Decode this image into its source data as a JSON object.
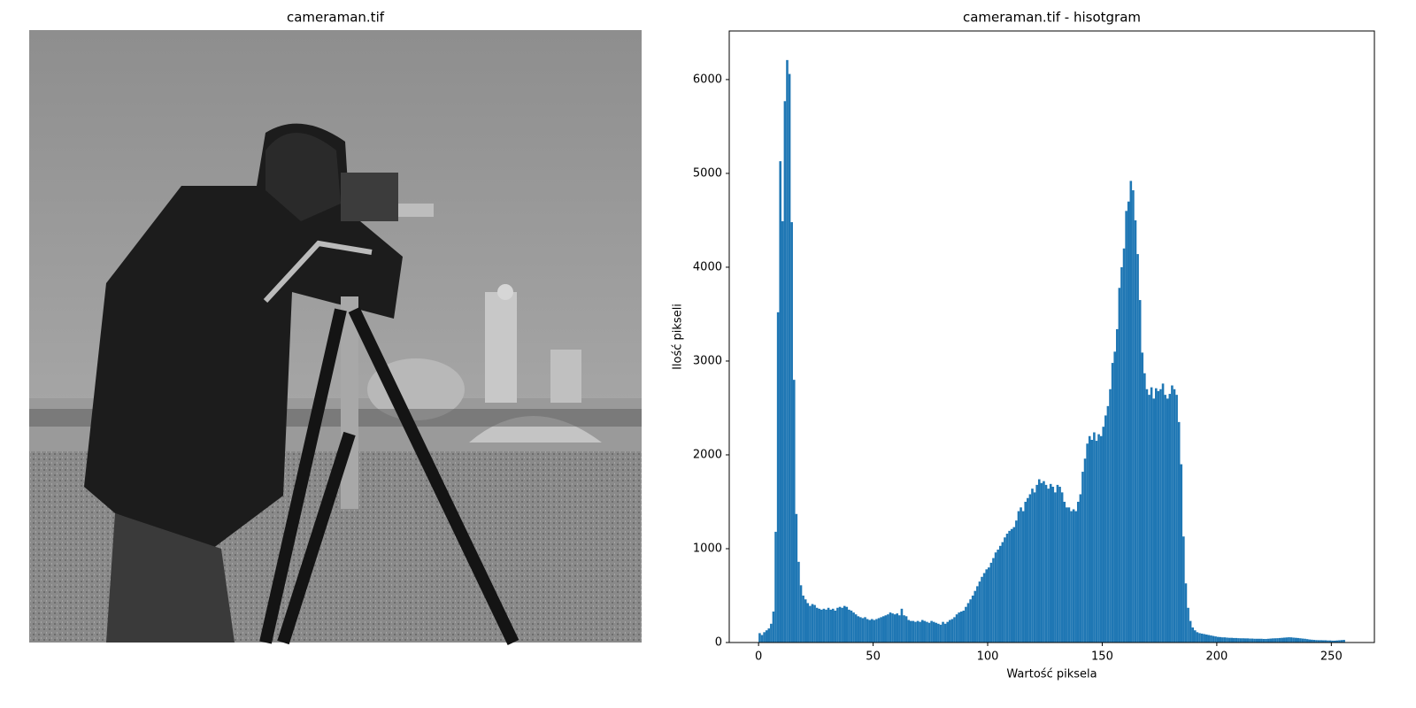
{
  "image": {
    "title": "cameraman.tif"
  },
  "chart_data": {
    "type": "histogram",
    "title": "cameraman.tif - hisotgram",
    "x_label": "Wartość piksela",
    "y_label": "Ilość pikseli",
    "color": "#1f77b4",
    "bins": [
      0,
      1,
      2,
      3,
      4,
      5,
      6,
      7,
      8,
      9,
      10,
      11,
      12,
      13,
      14,
      15,
      16,
      17,
      18,
      19,
      20,
      21,
      22,
      23,
      24,
      25,
      26,
      27,
      28,
      29,
      30,
      31,
      32,
      33,
      34,
      35,
      36,
      37,
      38,
      39,
      40,
      41,
      42,
      43,
      44,
      45,
      46,
      47,
      48,
      49,
      50,
      51,
      52,
      53,
      54,
      55,
      56,
      57,
      58,
      59,
      60,
      61,
      62,
      63,
      64,
      65,
      66,
      67,
      68,
      69,
      70,
      71,
      72,
      73,
      74,
      75,
      76,
      77,
      78,
      79,
      80,
      81,
      82,
      83,
      84,
      85,
      86,
      87,
      88,
      89,
      90,
      91,
      92,
      93,
      94,
      95,
      96,
      97,
      98,
      99,
      100,
      101,
      102,
      103,
      104,
      105,
      106,
      107,
      108,
      109,
      110,
      111,
      112,
      113,
      114,
      115,
      116,
      117,
      118,
      119,
      120,
      121,
      122,
      123,
      124,
      125,
      126,
      127,
      128,
      129,
      130,
      131,
      132,
      133,
      134,
      135,
      136,
      137,
      138,
      139,
      140,
      141,
      142,
      143,
      144,
      145,
      146,
      147,
      148,
      149,
      150,
      151,
      152,
      153,
      154,
      155,
      156,
      157,
      158,
      159,
      160,
      161,
      162,
      163,
      164,
      165,
      166,
      167,
      168,
      169,
      170,
      171,
      172,
      173,
      174,
      175,
      176,
      177,
      178,
      179,
      180,
      181,
      182,
      183,
      184,
      185,
      186,
      187,
      188,
      189,
      190,
      191,
      192,
      193,
      194,
      195,
      196,
      197,
      198,
      199,
      200,
      201,
      202,
      203,
      204,
      205,
      206,
      207,
      208,
      209,
      210,
      211,
      212,
      213,
      214,
      215,
      216,
      217,
      218,
      219,
      220,
      221,
      222,
      223,
      224,
      225,
      226,
      227,
      228,
      229,
      230,
      231,
      232,
      233,
      234,
      235,
      236,
      237,
      238,
      239,
      240,
      241,
      242,
      243,
      244,
      245,
      246,
      247,
      248,
      249,
      250,
      251,
      252,
      253,
      254,
      255,
      256
    ],
    "values": [
      100,
      80,
      110,
      130,
      150,
      200,
      330,
      1180,
      3520,
      5130,
      4490,
      5770,
      6208,
      6060,
      4480,
      2800,
      1370,
      860,
      610,
      500,
      460,
      420,
      390,
      410,
      400,
      370,
      360,
      350,
      360,
      350,
      370,
      350,
      360,
      340,
      370,
      380,
      370,
      390,
      380,
      350,
      340,
      320,
      300,
      280,
      270,
      260,
      270,
      250,
      240,
      250,
      240,
      250,
      260,
      270,
      280,
      290,
      300,
      320,
      310,
      300,
      310,
      290,
      360,
      290,
      280,
      240,
      230,
      230,
      220,
      230,
      220,
      240,
      230,
      220,
      210,
      230,
      220,
      210,
      200,
      190,
      220,
      200,
      220,
      240,
      250,
      270,
      300,
      320,
      330,
      340,
      380,
      420,
      460,
      500,
      550,
      600,
      650,
      700,
      740,
      780,
      800,
      850,
      900,
      960,
      990,
      1030,
      1070,
      1120,
      1160,
      1190,
      1210,
      1230,
      1300,
      1400,
      1440,
      1400,
      1500,
      1540,
      1580,
      1640,
      1600,
      1680,
      1740,
      1700,
      1720,
      1680,
      1640,
      1690,
      1660,
      1600,
      1680,
      1660,
      1600,
      1500,
      1440,
      1440,
      1400,
      1420,
      1400,
      1500,
      1580,
      1820,
      1960,
      2120,
      2200,
      2160,
      2240,
      2150,
      2220,
      2200,
      2300,
      2420,
      2520,
      2700,
      2980,
      3100,
      3340,
      3780,
      4000,
      4200,
      4600,
      4700,
      4920,
      4820,
      4500,
      4140,
      3650,
      3090,
      2870,
      2700,
      2640,
      2720,
      2600,
      2710,
      2680,
      2700,
      2760,
      2640,
      2600,
      2650,
      2740,
      2700,
      2640,
      2350,
      1900,
      1130,
      630,
      370,
      230,
      160,
      130,
      110,
      100,
      95,
      90,
      85,
      80,
      75,
      70,
      65,
      60,
      58,
      55,
      55,
      52,
      50,
      50,
      48,
      48,
      46,
      45,
      45,
      44,
      44,
      42,
      42,
      40,
      40,
      40,
      40,
      38,
      38,
      40,
      42,
      44,
      45,
      46,
      48,
      50,
      52,
      54,
      56,
      55,
      52,
      50,
      48,
      45,
      42,
      40,
      36,
      32,
      30,
      28,
      26,
      25,
      25,
      24,
      24,
      22,
      22,
      20,
      20,
      22,
      24,
      26,
      28
    ],
    "xlim": [
      -12.8,
      268.8
    ],
    "xticks": [
      0,
      50,
      100,
      150,
      200,
      250
    ],
    "ylim": [
      0,
      6518
    ],
    "yticks": [
      0,
      1000,
      2000,
      3000,
      4000,
      5000,
      6000
    ]
  }
}
